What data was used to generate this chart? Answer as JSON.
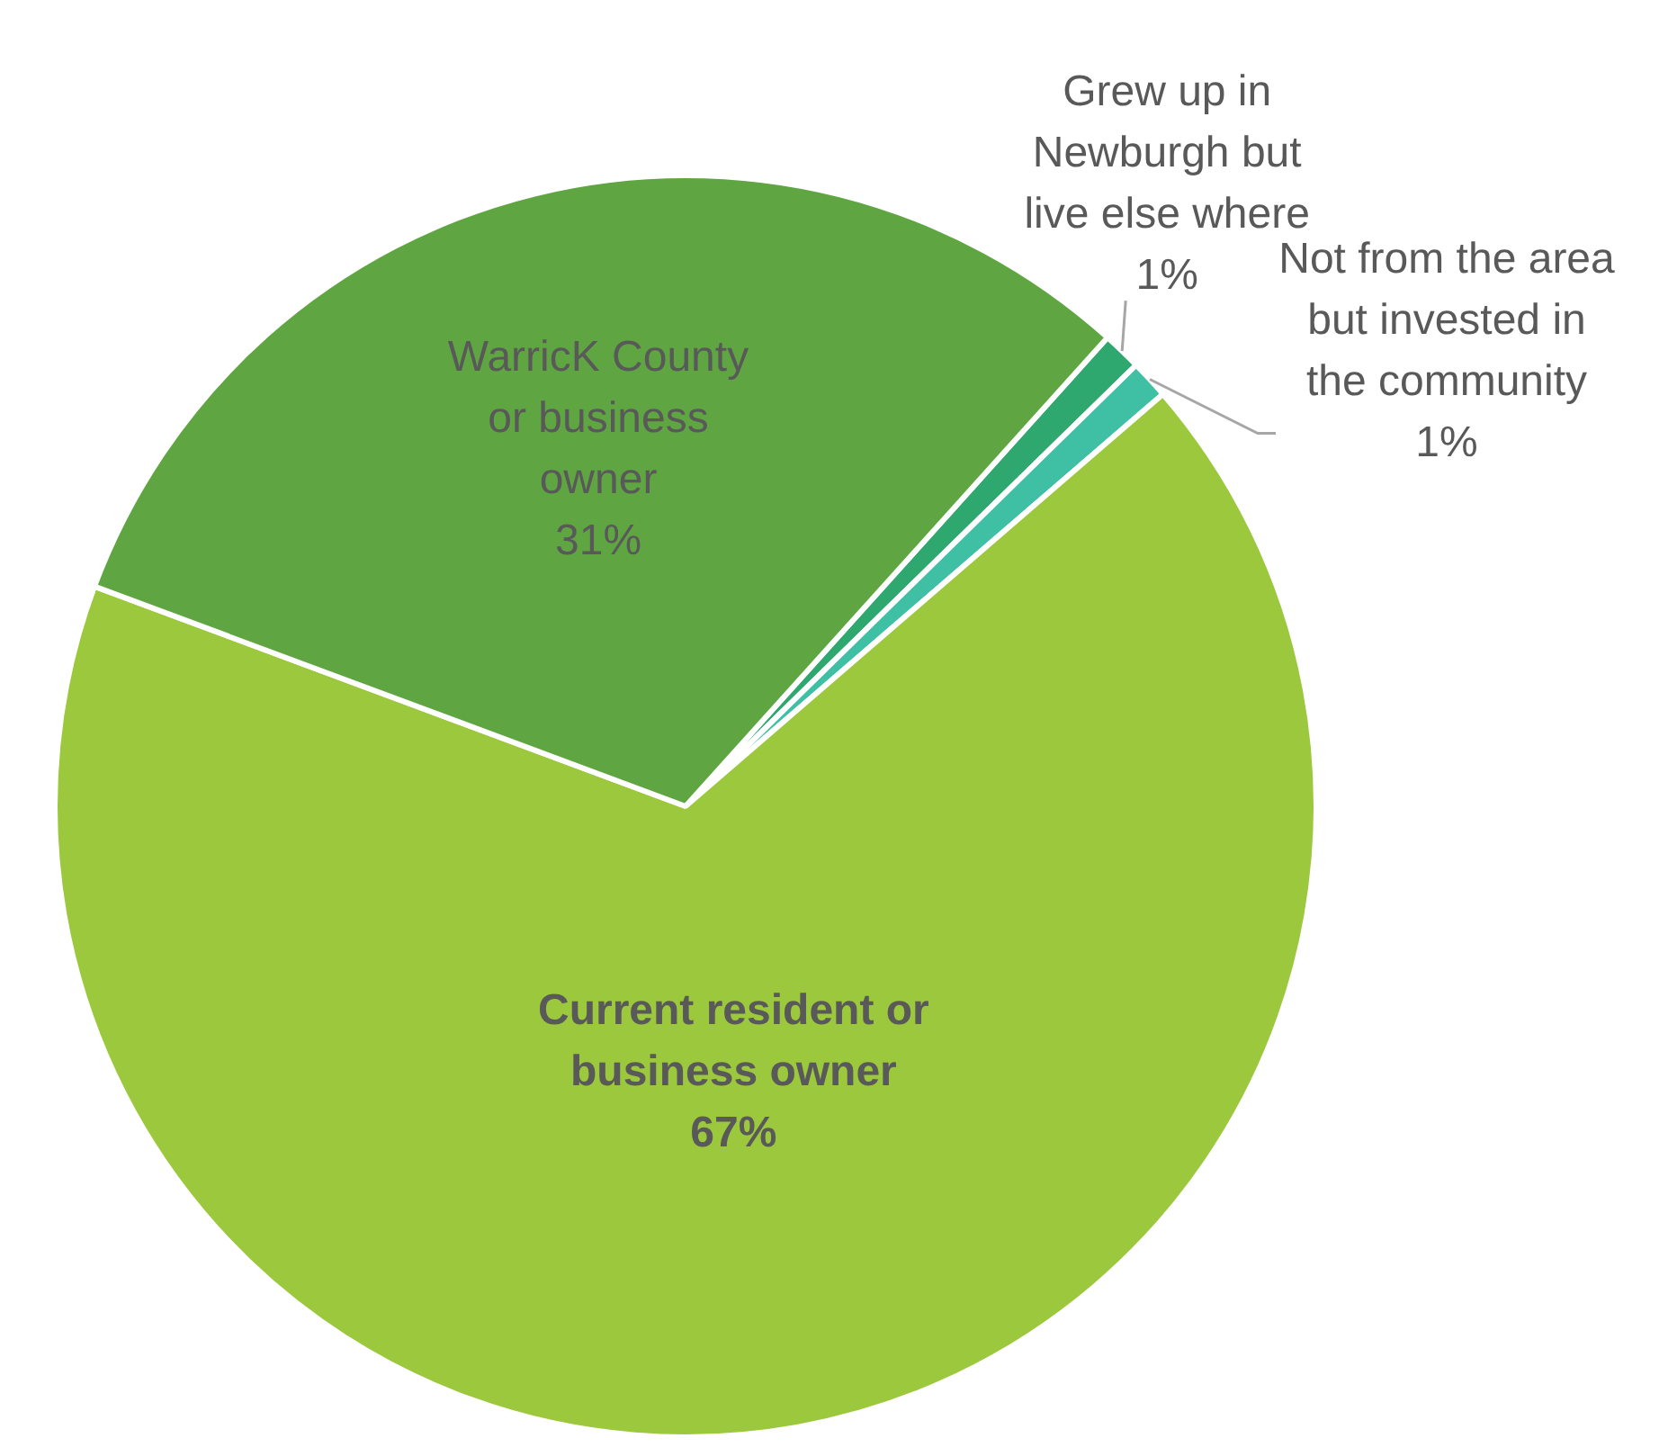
{
  "chart_data": {
    "type": "pie",
    "categories": [
      "Grew up in Newburgh but live else where",
      "Not from the area but invested in the community",
      "Current resident or business owner",
      "WarricK County or business owner"
    ],
    "values": [
      1,
      1,
      67,
      31
    ],
    "colors": [
      "#2ea86e",
      "#3fbfa3",
      "#9bc83c",
      "#5fa642"
    ],
    "value_labels": [
      "1%",
      "1%",
      "67%",
      "31%"
    ],
    "legend": false
  }
}
